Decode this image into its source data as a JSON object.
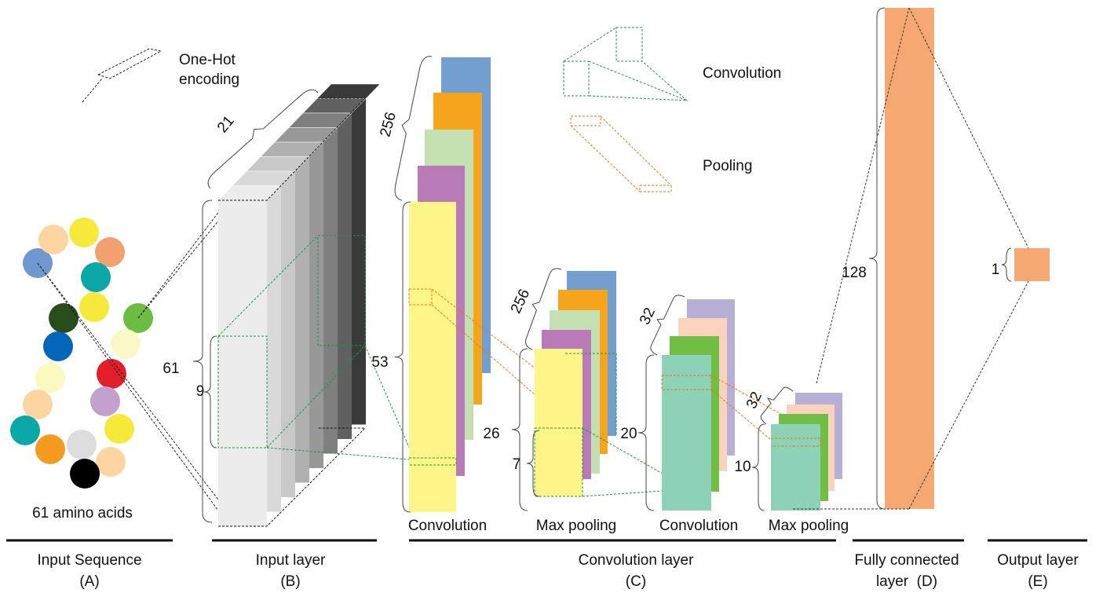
{
  "legend": {
    "one_hot": [
      "One-Hot",
      "encoding"
    ],
    "convolution": "Convolution",
    "pooling": "Pooling"
  },
  "input_sequence": {
    "caption": "61 amino acids"
  },
  "dimensions": {
    "input_depth": "21",
    "input_length": "61",
    "kernel": "9",
    "conv1_filters": "256",
    "conv1_length": "53",
    "pool1_filters": "256",
    "pool1_length": "26",
    "pool1_kernel": "7",
    "conv2_filters": "32",
    "conv2_length": "20",
    "pool2_filters": "32",
    "pool2_length": "10",
    "dense_units": "128",
    "output_units": "1"
  },
  "stage_labels": [
    "Convolution",
    "Max pooling",
    "Convolution",
    "Max pooling"
  ],
  "sections": [
    {
      "title": [
        "Input Sequence",
        "(A)"
      ]
    },
    {
      "title": [
        "Input layer",
        "(B)"
      ]
    },
    {
      "title": [
        "Convolution layer",
        "(C)"
      ]
    },
    {
      "title": [
        "Fully connected",
        "layer  (D)"
      ]
    },
    {
      "title": [
        "Output layer",
        "(E)"
      ]
    }
  ]
}
